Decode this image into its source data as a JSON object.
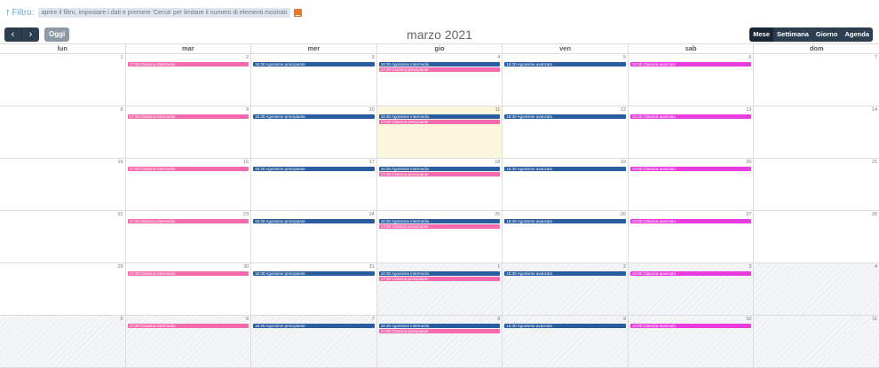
{
  "filter": {
    "label": "Filtro:",
    "hint": "aprire il filtro, impostare i dati e premere 'Cerca' per limitare il numero di elementi mostrati"
  },
  "nav": {
    "prev": "‹",
    "next": "›",
    "today": "Oggi"
  },
  "title": "marzo 2021",
  "views": [
    "Mese",
    "Settimana",
    "Giorno",
    "Agenda"
  ],
  "weekdays": [
    "lun",
    "mar",
    "mer",
    "gio",
    "ven",
    "sab",
    "dom"
  ],
  "colors": {
    "pink": "#f56aad",
    "blue": "#2a5d9f",
    "magenta": "#e93cde",
    "today": "#fcf6dd"
  },
  "weeks": [
    {
      "days": [
        "1",
        "2",
        "3",
        "4",
        "5",
        "6",
        "7"
      ]
    },
    {
      "days": [
        "8",
        "9",
        "10",
        "11",
        "12",
        "13",
        "14"
      ]
    },
    {
      "days": [
        "15",
        "16",
        "17",
        "18",
        "19",
        "20",
        "21"
      ]
    },
    {
      "days": [
        "22",
        "23",
        "24",
        "25",
        "26",
        "27",
        "28"
      ]
    },
    {
      "days": [
        "29",
        "30",
        "31",
        "1",
        "2",
        "3",
        "4"
      ]
    },
    {
      "days": [
        "5",
        "6",
        "7",
        "8",
        "9",
        "10",
        "11"
      ]
    }
  ],
  "events": {
    "mar": "17:30 Classica intermedio",
    "mer": "16:30 Agonisme principiante",
    "gio1": "16:30 Agonisme intermedio",
    "gio2": "17:30 Classica principiante",
    "ven": "16:30 Agonisme avanzato",
    "sab": "10:00 Classica avanzato"
  }
}
